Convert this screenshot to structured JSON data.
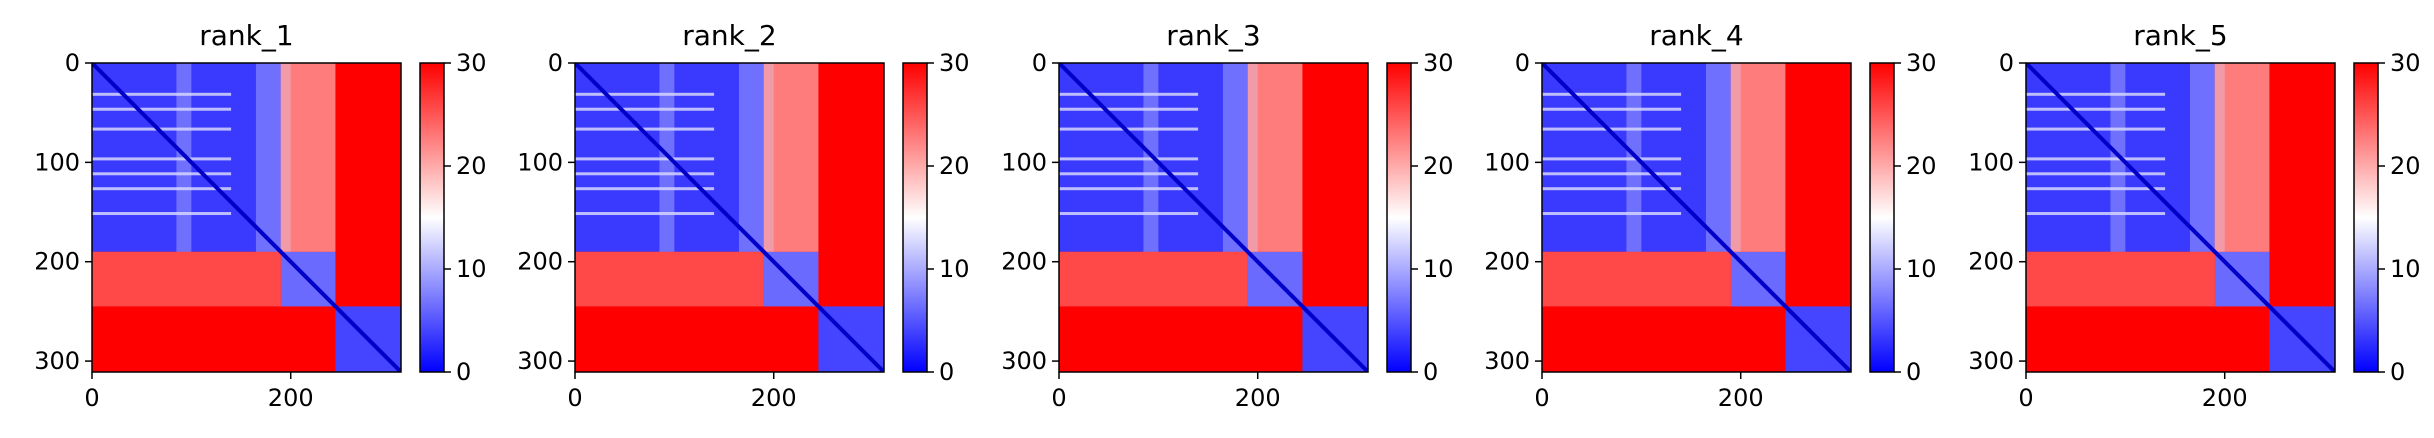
{
  "chart_data": [
    {
      "type": "heatmap",
      "title": "rank_1",
      "x_ticks": [
        0,
        200
      ],
      "y_ticks": [
        0,
        100,
        200,
        300
      ],
      "xlim": [
        0,
        311
      ],
      "ylim": [
        311,
        0
      ],
      "colorbar": {
        "ticks": [
          0,
          10,
          20,
          30
        ],
        "range": [
          0,
          30
        ],
        "colors": [
          "#0000ff",
          "#ffffff",
          "#ff0000"
        ]
      },
      "domains": [
        [
          0,
          190
        ],
        [
          190,
          245
        ],
        [
          245,
          311
        ]
      ]
    },
    {
      "type": "heatmap",
      "title": "rank_2",
      "x_ticks": [
        0,
        200
      ],
      "y_ticks": [
        0,
        100,
        200,
        300
      ],
      "xlim": [
        0,
        311
      ],
      "ylim": [
        311,
        0
      ],
      "colorbar": {
        "ticks": [
          0,
          10,
          20,
          30
        ],
        "range": [
          0,
          30
        ],
        "colors": [
          "#0000ff",
          "#ffffff",
          "#ff0000"
        ]
      },
      "domains": [
        [
          0,
          190
        ],
        [
          190,
          245
        ],
        [
          245,
          311
        ]
      ]
    },
    {
      "type": "heatmap",
      "title": "rank_3",
      "x_ticks": [
        0,
        200
      ],
      "y_ticks": [
        0,
        100,
        200,
        300
      ],
      "xlim": [
        0,
        311
      ],
      "ylim": [
        311,
        0
      ],
      "colorbar": {
        "ticks": [
          0,
          10,
          20,
          30
        ],
        "range": [
          0,
          30
        ],
        "colors": [
          "#0000ff",
          "#ffffff",
          "#ff0000"
        ]
      },
      "domains": [
        [
          0,
          190
        ],
        [
          190,
          245
        ],
        [
          245,
          311
        ]
      ]
    },
    {
      "type": "heatmap",
      "title": "rank_4",
      "x_ticks": [
        0,
        200
      ],
      "y_ticks": [
        0,
        100,
        200,
        300
      ],
      "xlim": [
        0,
        311
      ],
      "ylim": [
        311,
        0
      ],
      "colorbar": {
        "ticks": [
          0,
          10,
          20,
          30
        ],
        "range": [
          0,
          30
        ],
        "colors": [
          "#0000ff",
          "#ffffff",
          "#ff0000"
        ]
      },
      "domains": [
        [
          0,
          190
        ],
        [
          190,
          245
        ],
        [
          245,
          311
        ]
      ]
    },
    {
      "type": "heatmap",
      "title": "rank_5",
      "x_ticks": [
        0,
        200
      ],
      "y_ticks": [
        0,
        100,
        200,
        300
      ],
      "xlim": [
        0,
        311
      ],
      "ylim": [
        311,
        0
      ],
      "colorbar": {
        "ticks": [
          0,
          10,
          20,
          30
        ],
        "range": [
          0,
          30
        ],
        "colors": [
          "#0000ff",
          "#ffffff",
          "#ff0000"
        ]
      },
      "domains": [
        [
          0,
          190
        ],
        [
          190,
          245
        ],
        [
          245,
          311
        ]
      ]
    }
  ]
}
